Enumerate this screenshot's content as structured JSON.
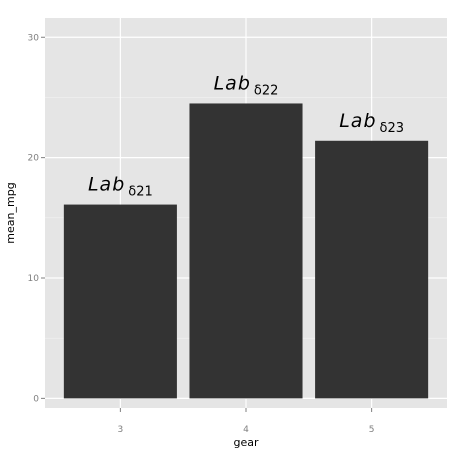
{
  "chart_data": {
    "type": "bar",
    "categories": [
      "3",
      "4",
      "5"
    ],
    "values": [
      16.1,
      24.5,
      21.4
    ],
    "color": "#333333",
    "xlabel": "gear",
    "ylabel": "mean_mpg",
    "ylim": [
      -0.8,
      31.6
    ],
    "yticks": [
      0,
      10,
      20,
      30
    ],
    "minor_yticks": [
      5,
      15,
      25
    ],
    "grid": true,
    "annotations": [
      {
        "main": "Lab",
        "sub": "δ21"
      },
      {
        "main": "Lab",
        "sub": "δ22"
      },
      {
        "main": "Lab",
        "sub": "δ23"
      }
    ]
  }
}
